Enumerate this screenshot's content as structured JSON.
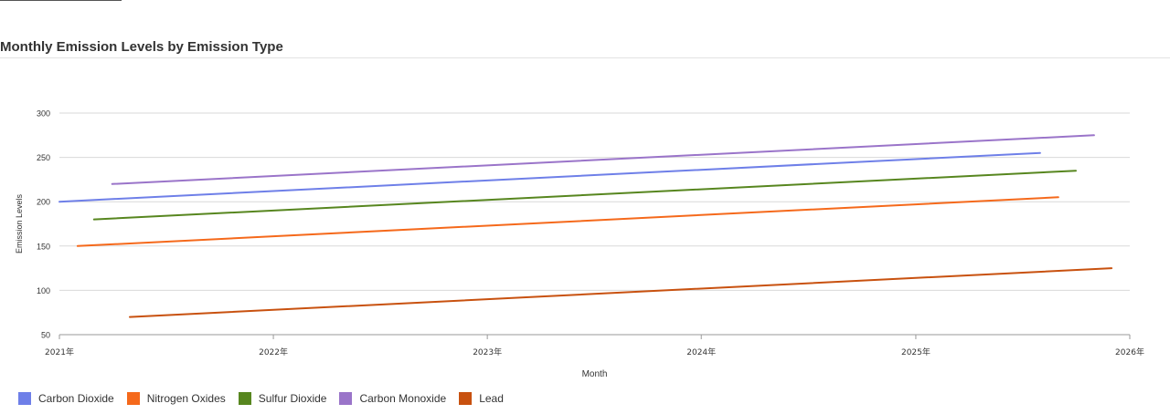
{
  "panel": {
    "title": "Monthly Emission Levels by Emission Type"
  },
  "chart_data": {
    "type": "line",
    "title": "",
    "xlabel": "Month",
    "ylabel": "Emission Levels",
    "xlim": [
      "2021-01-01",
      "2026-01-01"
    ],
    "ylim": [
      50,
      300
    ],
    "y_ticks": [
      50,
      100,
      150,
      200,
      250,
      300
    ],
    "x_ticks": [
      "2021年",
      "2022年",
      "2023年",
      "2024年",
      "2025年",
      "2026年"
    ],
    "grid": true,
    "legend_position": "bottom-left",
    "series": [
      {
        "name": "Carbon Dioxide",
        "color": "#6e7fe8",
        "points": [
          [
            "2021-01-01",
            200
          ],
          [
            "2025-08-01",
            255
          ]
        ]
      },
      {
        "name": "Nitrogen Oxides",
        "color": "#f5691b",
        "points": [
          [
            "2021-02-01",
            150
          ],
          [
            "2025-09-01",
            205
          ]
        ]
      },
      {
        "name": "Sulfur Dioxide",
        "color": "#57861f",
        "points": [
          [
            "2021-03-01",
            180
          ],
          [
            "2025-10-01",
            235
          ]
        ]
      },
      {
        "name": "Carbon Monoxide",
        "color": "#9a74c9",
        "points": [
          [
            "2021-04-01",
            220
          ],
          [
            "2025-11-01",
            275
          ]
        ]
      },
      {
        "name": "Lead",
        "color": "#c8510f",
        "points": [
          [
            "2021-05-01",
            70
          ],
          [
            "2025-12-01",
            125
          ]
        ]
      }
    ]
  }
}
